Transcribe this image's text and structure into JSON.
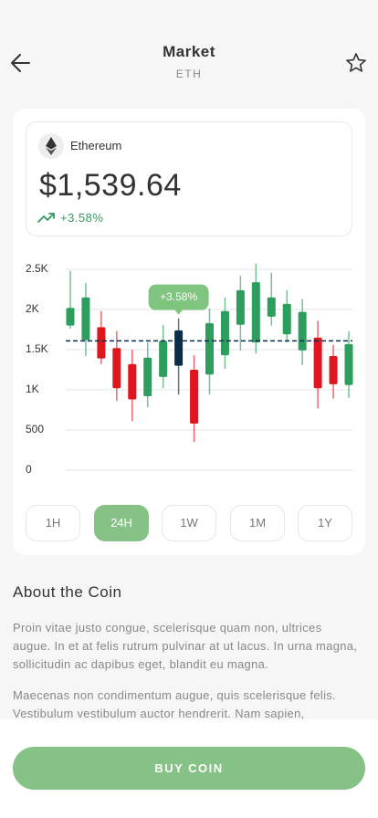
{
  "header": {
    "title": "Market",
    "subtitle": "ETH"
  },
  "coin": {
    "name": "Ethereum",
    "price": "$1,539.64",
    "change": "+3.58%"
  },
  "chart_data": {
    "type": "candlestick",
    "open": [
      1800,
      1620,
      1780,
      1520,
      1320,
      920,
      1160,
      1300,
      1250,
      1190,
      1430,
      1810,
      1590,
      1910,
      1690,
      1490,
      1650,
      1420,
      1060
    ],
    "high": [
      2480,
      2330,
      1980,
      1730,
      1500,
      1590,
      1810,
      1890,
      1430,
      2010,
      2150,
      2420,
      2570,
      2460,
      2240,
      2130,
      1860,
      1560,
      1730
    ],
    "low": [
      1760,
      1420,
      1320,
      860,
      610,
      780,
      1020,
      940,
      350,
      940,
      1260,
      1490,
      1450,
      1800,
      1590,
      1310,
      770,
      890,
      900
    ],
    "close": [
      2020,
      2150,
      1390,
      1020,
      880,
      1400,
      1610,
      1740,
      580,
      1830,
      1980,
      2240,
      2340,
      2150,
      2070,
      1970,
      1020,
      1070,
      1570
    ],
    "ylim": [
      0,
      2500
    ],
    "yticks": [
      {
        "value": 2500,
        "label": "2.5K"
      },
      {
        "value": 2000,
        "label": "2K"
      },
      {
        "value": 1500,
        "label": "1.5K"
      },
      {
        "value": 1000,
        "label": "1K"
      },
      500,
      0
    ],
    "grid": true,
    "up_color": "#2e9e5e",
    "down_color": "#e0161e",
    "highlight_color": "#0c2d48",
    "highlight": 7,
    "annotation": "+3.58%",
    "annotation_color": "#7fc47f",
    "reference_line": 1610,
    "reference_color": "#0c2d48"
  },
  "timeframes": {
    "options": [
      "1H",
      "24H",
      "1W",
      "1M",
      "1Y"
    ],
    "active": 1
  },
  "about": {
    "title": "About the Coin",
    "paragraphs": [
      "Proin vitae justo congue, scelerisque quam non, ultrices augue. In et at felis rutrum pulvinar at ut lacus. In urna magna, sollicitudin ac dapibus eget, blandit eu magna.",
      "Maecenas non condimentum augue, quis scelerisque felis. Vestibulum vestibulum auctor hendrerit. Nam sapien, consequat at commodo vitae, viverra nec nisl."
    ]
  },
  "button": "BUY COIN"
}
